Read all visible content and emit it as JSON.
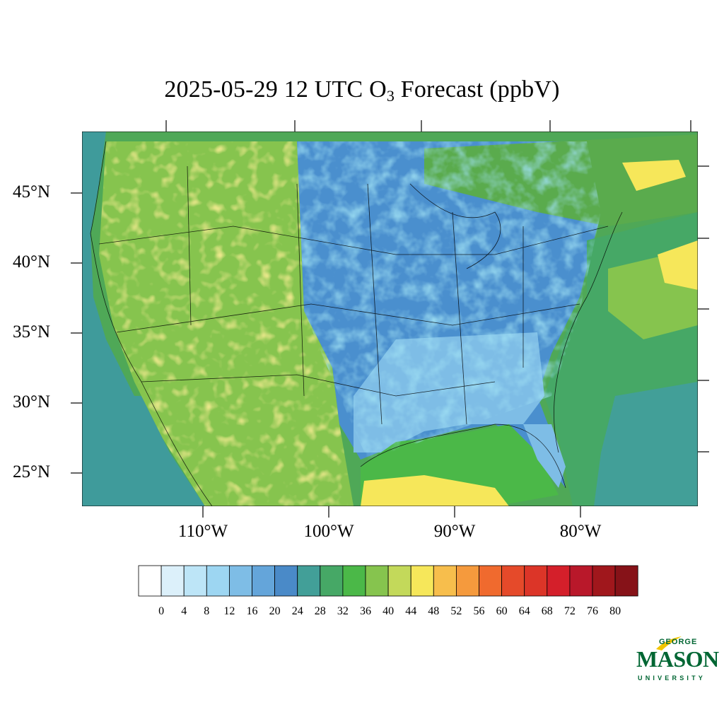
{
  "title": {
    "prefix": "2025-05-29 12 UTC O",
    "subscript": "3",
    "suffix": " Forecast (ppbV)"
  },
  "map": {
    "lat_labels": [
      "45°N",
      "40°N",
      "35°N",
      "30°N",
      "25°N"
    ],
    "lon_labels": [
      "110°W",
      "100°W",
      "90°W",
      "80°W"
    ],
    "land_color": "#5aab4d",
    "low_color": "#4a8fce",
    "ocean_color": "#3f9b9b"
  },
  "colorbar": {
    "tick_labels": [
      "0",
      "4",
      "8",
      "12",
      "16",
      "20",
      "24",
      "28",
      "32",
      "36",
      "40",
      "44",
      "48",
      "52",
      "56",
      "60",
      "64",
      "68",
      "72",
      "76",
      "80"
    ],
    "colors": [
      "#ffffff",
      "#dcf0fa",
      "#bde5f7",
      "#9dd6f2",
      "#7ebde6",
      "#64a5da",
      "#4a8ac8",
      "#429f98",
      "#46a866",
      "#4bb848",
      "#86c44e",
      "#c3d95a",
      "#f6e75a",
      "#f7be4c",
      "#f59a3d",
      "#f06a2e",
      "#e54a2a",
      "#dc3528",
      "#d41f2a",
      "#b9182a",
      "#a0171c",
      "#861218"
    ]
  },
  "logo": {
    "line1": "GEORGE",
    "line2": "MASON",
    "line3": "UNIVERSITY",
    "color": "#006633",
    "accent": "#f2c500"
  }
}
